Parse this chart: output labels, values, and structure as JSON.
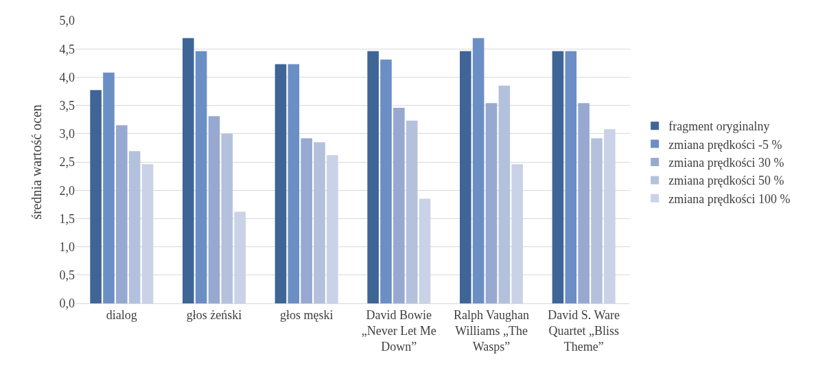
{
  "chart_data": {
    "type": "bar",
    "ylabel": "średnia wartość ocen",
    "categories": [
      "dialog",
      "głos żeński",
      "głos męski",
      "David Bowie „Never Let Me Down”",
      "Ralph Vaughan Williams „The Wasps”",
      "David S. Ware Quartet „Bliss Theme”"
    ],
    "series": [
      {
        "name": "fragment oryginalny",
        "color": "#3f6597",
        "values": [
          3.77,
          4.69,
          4.23,
          4.46,
          4.46,
          4.46
        ]
      },
      {
        "name": "zmiana prędkości -5 %",
        "color": "#6b8fc5",
        "values": [
          4.08,
          4.46,
          4.23,
          4.31,
          4.69,
          4.46
        ]
      },
      {
        "name": "zmiana prędkości 30 %",
        "color": "#97a9d0",
        "values": [
          3.15,
          3.31,
          2.92,
          3.46,
          3.54,
          3.54
        ]
      },
      {
        "name": "zmiana prędkości 50 %",
        "color": "#b3c1dd",
        "values": [
          2.69,
          3.0,
          2.85,
          3.23,
          3.85,
          2.92
        ]
      },
      {
        "name": "zmiana prędkości 100 %",
        "color": "#c9d2e6",
        "values": [
          2.46,
          1.62,
          2.62,
          1.85,
          2.46,
          3.08
        ]
      }
    ],
    "ylim": [
      0,
      5
    ],
    "yticks": [
      {
        "value": 0,
        "label": "0,0"
      },
      {
        "value": 0.5,
        "label": "0,5"
      },
      {
        "value": 1,
        "label": "1,0"
      },
      {
        "value": 1.5,
        "label": "1,5"
      },
      {
        "value": 2,
        "label": "2,0"
      },
      {
        "value": 2.5,
        "label": "2,5"
      },
      {
        "value": 3,
        "label": "3,0"
      },
      {
        "value": 3.5,
        "label": "3,5"
      },
      {
        "value": 4,
        "label": "4,0"
      },
      {
        "value": 4.5,
        "label": "4,5"
      },
      {
        "value": 5,
        "label": "5,0"
      }
    ],
    "grid": "y",
    "legend": "right"
  }
}
